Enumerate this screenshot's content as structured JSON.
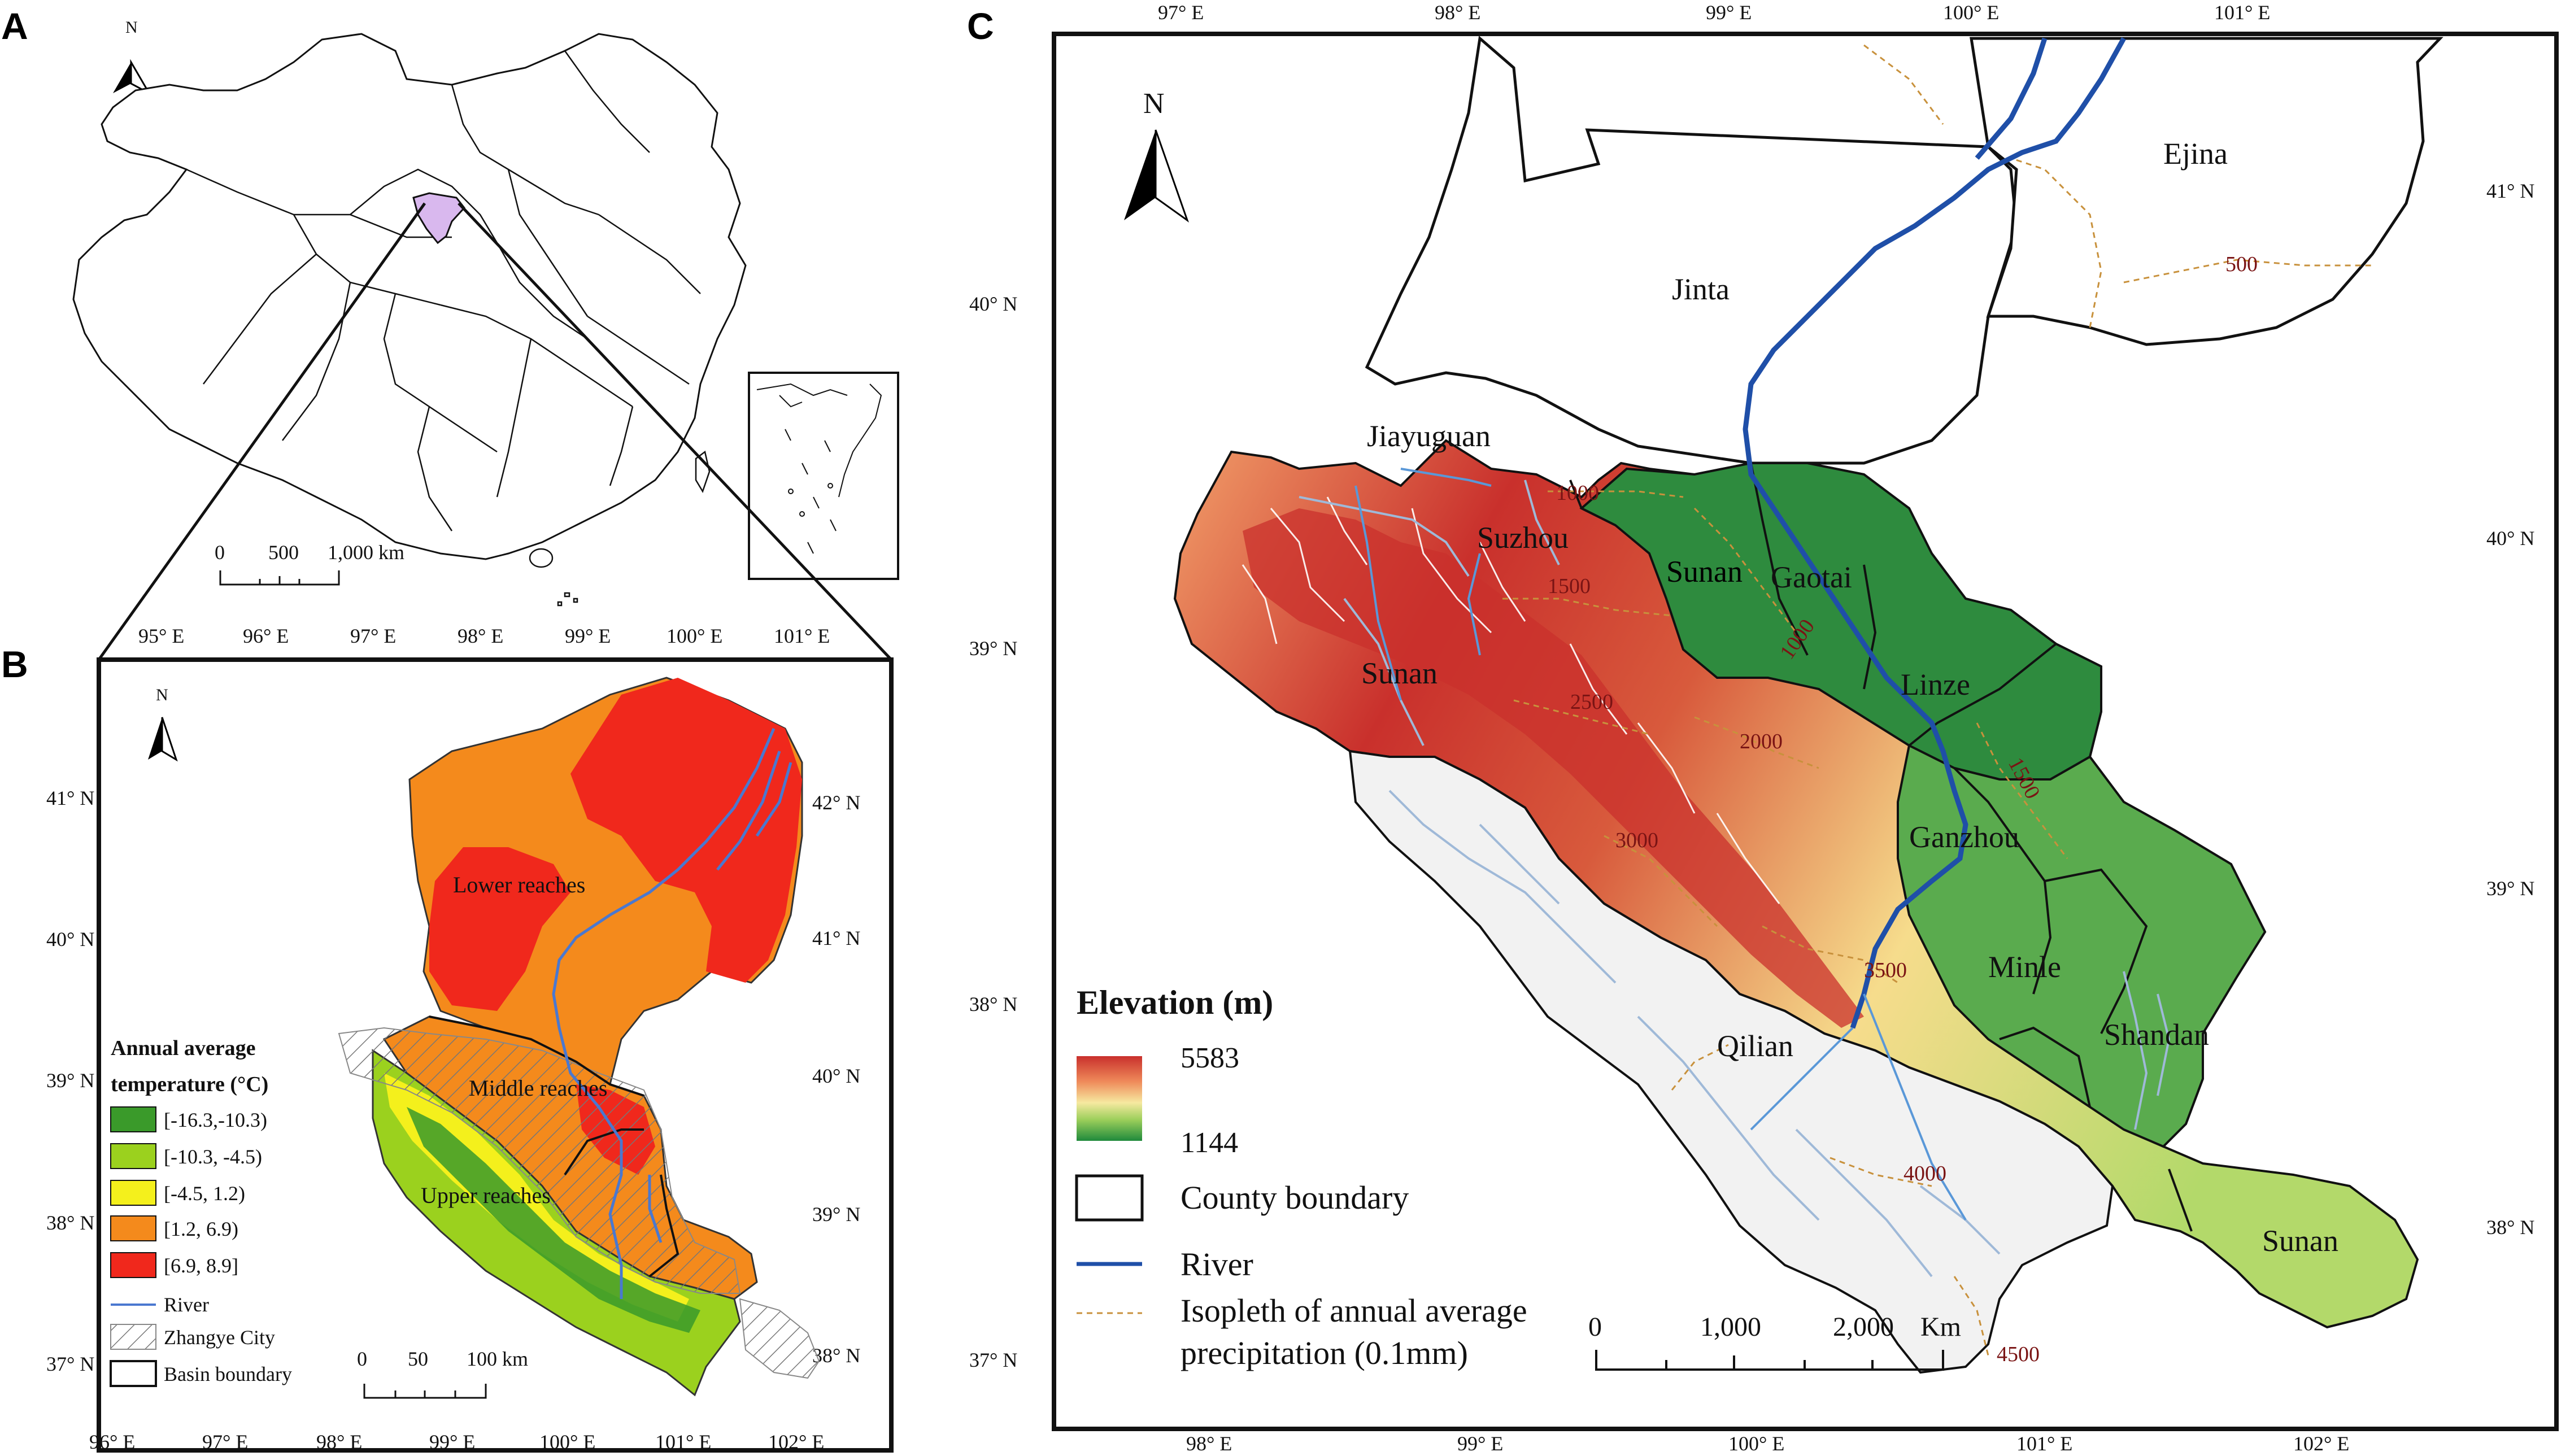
{
  "panels": {
    "a": {
      "letter": "A",
      "north": "N",
      "scale": {
        "ticks": [
          "0",
          "500",
          "1,000 km"
        ]
      }
    },
    "b": {
      "letter": "B",
      "north": "N",
      "lon_ticks_top": [
        "95° E",
        "96° E",
        "97° E",
        "98° E",
        "99° E",
        "100° E",
        "101° E"
      ],
      "lon_ticks_bottom": [
        "96° E",
        "97° E",
        "98° E",
        "99° E",
        "100° E",
        "101° E",
        "102° E"
      ],
      "lat_ticks_left": [
        "41° N",
        "40° N",
        "39° N",
        "38° N",
        "37° N"
      ],
      "lat_ticks_right": [
        "42° N",
        "41° N",
        "40° N",
        "39° N",
        "38° N"
      ],
      "region_labels": [
        "Lower reaches",
        "Middle reaches",
        "Upper reaches"
      ],
      "legend": {
        "title_line1": "Annual average",
        "title_line2": "temperature (°C)",
        "classes": [
          {
            "label": "[-16.3,-10.3)",
            "color": "#3a9a2a"
          },
          {
            "label": "[-10.3, -4.5)",
            "color": "#9bd11e"
          },
          {
            "label": "[-4.5, 1.2)",
            "color": "#f4f01c"
          },
          {
            "label": "[1.2, 6.9)",
            "color": "#f48a1c"
          },
          {
            "label": "[6.9, 8.9]",
            "color": "#f0281c"
          }
        ],
        "river": "River",
        "city": "Zhangye City",
        "basin": "Basin boundary"
      },
      "scale": {
        "ticks": [
          "0",
          "50",
          "100 km"
        ]
      }
    },
    "c": {
      "letter": "C",
      "north": "N",
      "lon_ticks_top": [
        "97° E",
        "98° E",
        "99° E",
        "100° E",
        "101° E"
      ],
      "lon_ticks_bottom": [
        "98° E",
        "99° E",
        "100° E",
        "101° E",
        "102° E"
      ],
      "lat_ticks_left": [
        "40° N",
        "39° N",
        "38° N",
        "37° N"
      ],
      "lat_ticks_right": [
        "41° N",
        "40° N",
        "39° N",
        "38° N"
      ],
      "counties": [
        "Ejina",
        "Jinta",
        "Jiayuguan",
        "Suzhou",
        "Sunan",
        "Gaotai",
        "Sunan",
        "Linze",
        "Ganzhou",
        "Minle",
        "Shandan",
        "Qilian",
        "Sunan"
      ],
      "isopleths": [
        "500",
        "1000",
        "1500",
        "1000",
        "2000",
        "2500",
        "1500",
        "3000",
        "3500",
        "4000",
        "4500"
      ],
      "legend": {
        "title": "Elevation (m)",
        "max": "5583",
        "min": "1144",
        "county": "County boundary",
        "river": "River",
        "isopleth_line1": "Isopleth of annual average",
        "isopleth_line2": "precipitation (0.1mm)"
      },
      "scale": {
        "ticks": [
          "0",
          "1,000",
          "2,000",
          "Km"
        ]
      }
    }
  },
  "colors": {
    "frame": "#111111",
    "river": "#1f4fa8",
    "gansu_highlight": "#d9b8ee",
    "elev_high": "#c9302c",
    "elev_mid": "#f2d27a",
    "elev_low": "#1f8a3c",
    "isopleth": "#c8913c"
  }
}
